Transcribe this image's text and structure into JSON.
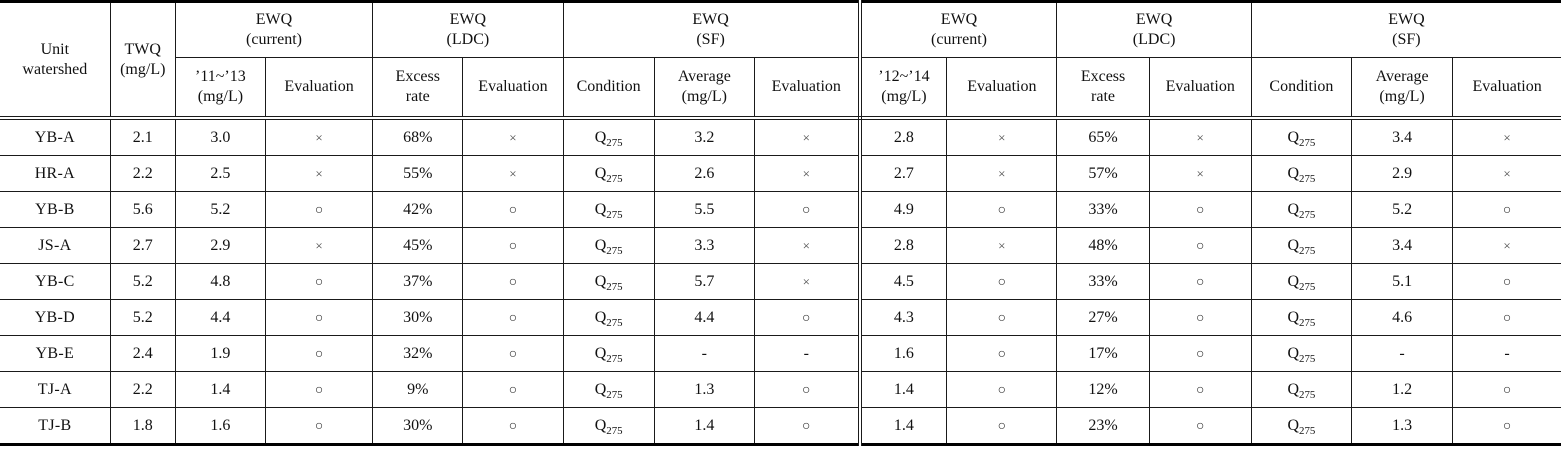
{
  "table": {
    "header": {
      "row1": {
        "unit": "Unit\nwatershed",
        "twq": "TWQ\n(mg/L)",
        "g1": "EWQ\n(current)",
        "g2": "EWQ\n(LDC)",
        "g3": "EWQ\n(SF)",
        "g4": "EWQ\n(current)",
        "g5": "EWQ\n(LDC)",
        "g6": "EWQ\n(SF)"
      },
      "row2": {
        "c3": "’11~’13\n(mg/L)",
        "c4": "Evaluation",
        "c5": "Excess\nrate",
        "c6": "Evaluation",
        "c7": "Condition",
        "c8": "Average\n(mg/L)",
        "c9": "Evaluation",
        "c10": "’12~’14\n(mg/L)",
        "c11": "Evaluation",
        "c12": "Excess\nrate",
        "c13": "Evaluation",
        "c14": "Condition",
        "c15": "Average\n(mg/L)",
        "c16": "Evaluation"
      }
    },
    "rows": [
      {
        "cells": [
          "YB-A",
          "2.1",
          "3.0",
          "×",
          "68%",
          "×",
          "Q275",
          "3.2",
          "×",
          "2.8",
          "×",
          "65%",
          "×",
          "Q275",
          "3.4",
          "×"
        ]
      },
      {
        "cells": [
          "HR-A",
          "2.2",
          "2.5",
          "×",
          "55%",
          "×",
          "Q275",
          "2.6",
          "×",
          "2.7",
          "×",
          "57%",
          "×",
          "Q275",
          "2.9",
          "×"
        ]
      },
      {
        "cells": [
          "YB-B",
          "5.6",
          "5.2",
          "○",
          "42%",
          "○",
          "Q275",
          "5.5",
          "○",
          "4.9",
          "○",
          "33%",
          "○",
          "Q275",
          "5.2",
          "○"
        ]
      },
      {
        "cells": [
          "JS-A",
          "2.7",
          "2.9",
          "×",
          "45%",
          "○",
          "Q275",
          "3.3",
          "×",
          "2.8",
          "×",
          "48%",
          "○",
          "Q275",
          "3.4",
          "×"
        ]
      },
      {
        "cells": [
          "YB-C",
          "5.2",
          "4.8",
          "○",
          "37%",
          "○",
          "Q275",
          "5.7",
          "×",
          "4.5",
          "○",
          "33%",
          "○",
          "Q275",
          "5.1",
          "○"
        ]
      },
      {
        "cells": [
          "YB-D",
          "5.2",
          "4.4",
          "○",
          "30%",
          "○",
          "Q275",
          "4.4",
          "○",
          "4.3",
          "○",
          "27%",
          "○",
          "Q275",
          "4.6",
          "○"
        ]
      },
      {
        "cells": [
          "YB-E",
          "2.4",
          "1.9",
          "○",
          "32%",
          "○",
          "Q275",
          "-",
          "-",
          "1.6",
          "○",
          "17%",
          "○",
          "Q275",
          "-",
          "-"
        ]
      },
      {
        "cells": [
          "TJ-A",
          "2.2",
          "1.4",
          "○",
          "9%",
          "○",
          "Q275",
          "1.3",
          "○",
          "1.4",
          "○",
          "12%",
          "○",
          "Q275",
          "1.2",
          "○"
        ]
      },
      {
        "cells": [
          "TJ-B",
          "1.8",
          "1.6",
          "○",
          "30%",
          "○",
          "Q275",
          "1.4",
          "○",
          "1.4",
          "○",
          "23%",
          "○",
          "Q275",
          "1.3",
          "○"
        ]
      }
    ],
    "symbols": {
      "pass": "○",
      "fail": "×",
      "not_available": "-"
    },
    "colors": {
      "border": "#1a1a1a",
      "text": "#111111",
      "background": "#ffffff"
    }
  }
}
